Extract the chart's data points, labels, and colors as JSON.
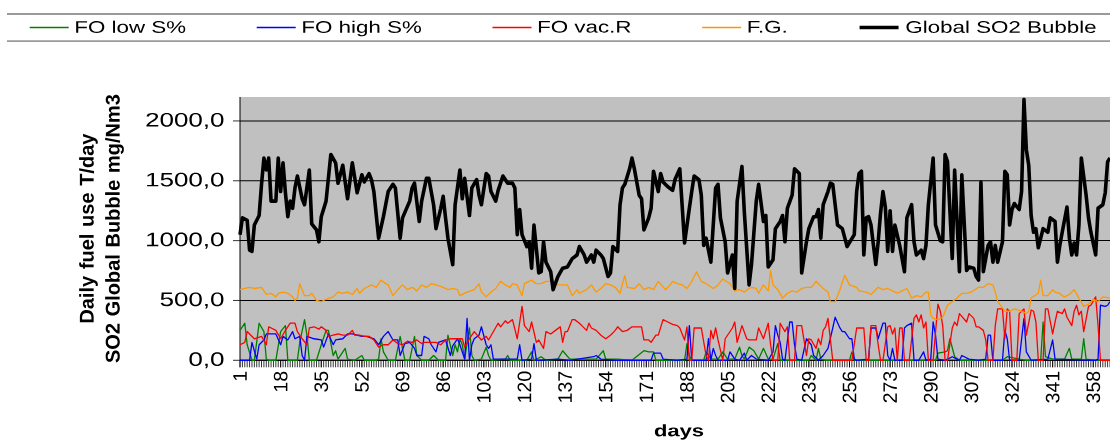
{
  "chart_data": {
    "type": "line",
    "xlabel": "days",
    "ylabel": "Daily fuel use T/day SO2 Global Bubble mg/Nm3",
    "xlim": [
      1,
      365
    ],
    "xticks": [
      1,
      18,
      35,
      52,
      69,
      86,
      103,
      120,
      137,
      154,
      171,
      188,
      205,
      222,
      239,
      256,
      273,
      290,
      307,
      324,
      341,
      358
    ],
    "ylim": [
      0,
      2200
    ],
    "yticks": [
      {
        "value": 0,
        "label": "0,0"
      },
      {
        "value": 500,
        "label": "500,0"
      },
      {
        "value": 1000,
        "label": "1000,0"
      },
      {
        "value": 1500,
        "label": "1500,0"
      },
      {
        "value": 2000,
        "label": "2000,0"
      }
    ],
    "grid": "y",
    "legend": "top",
    "line_style": "solid",
    "series": [
      {
        "name": "FO low S%",
        "color": "#008000",
        "x": [
          1,
          3,
          4,
          6,
          7,
          9,
          11,
          12,
          13,
          16,
          18,
          20,
          21,
          25,
          26,
          28,
          29,
          30,
          33,
          35,
          37,
          38,
          40,
          41,
          42,
          45,
          46,
          49,
          52,
          53,
          58,
          59,
          60,
          61,
          63,
          66,
          68,
          70,
          72,
          74,
          75,
          77,
          80,
          82,
          84,
          87,
          88,
          90,
          91,
          92,
          93,
          94,
          95,
          97,
          98,
          99,
          102,
          104,
          105,
          106,
          112,
          113,
          114,
          121,
          123,
          124,
          127,
          129,
          134,
          136,
          139,
          150,
          153,
          154,
          159,
          165,
          170,
          172,
          174,
          175,
          187,
          188,
          189,
          190,
          195,
          196,
          198,
          201,
          203,
          205,
          208,
          210,
          211,
          212,
          214,
          216,
          218,
          220,
          222,
          224,
          226,
          227,
          239,
          240,
          242,
          243,
          244,
          246,
          256,
          257,
          258,
          292,
          293,
          296,
          297,
          298,
          300,
          302,
          320,
          322,
          327,
          330,
          336,
          337,
          338,
          341,
          346,
          348,
          349,
          353,
          354,
          355,
          359,
          365
        ],
        "values": [
          250,
          310,
          130,
          0,
          0,
          310,
          240,
          10,
          0,
          0,
          240,
          290,
          0,
          0,
          150,
          340,
          210,
          0,
          0,
          130,
          250,
          250,
          40,
          80,
          10,
          100,
          10,
          0,
          40,
          0,
          0,
          10,
          180,
          70,
          0,
          0,
          200,
          0,
          0,
          200,
          40,
          0,
          0,
          40,
          0,
          0,
          210,
          40,
          130,
          70,
          180,
          130,
          10,
          270,
          40,
          0,
          10,
          110,
          40,
          0,
          10,
          40,
          0,
          0,
          70,
          0,
          30,
          0,
          10,
          80,
          10,
          10,
          80,
          10,
          10,
          0,
          80,
          70,
          70,
          0,
          0,
          140,
          40,
          0,
          0,
          70,
          10,
          10,
          70,
          10,
          10,
          110,
          40,
          10,
          110,
          80,
          10,
          100,
          10,
          10,
          140,
          0,
          0,
          40,
          0,
          100,
          10,
          0,
          0,
          70,
          0,
          0,
          60,
          70,
          80,
          180,
          30,
          0,
          0,
          30,
          10,
          0,
          0,
          320,
          30,
          10,
          10,
          100,
          10,
          10,
          180,
          10,
          0,
          0
        ]
      },
      {
        "name": "FO high S%",
        "color": "#0000ff",
        "x": [
          1,
          5,
          6,
          8,
          9,
          11,
          12,
          16,
          18,
          19,
          21,
          23,
          24,
          26,
          27,
          28,
          29,
          32,
          35,
          36,
          38,
          40,
          41,
          44,
          46,
          48,
          50,
          52,
          54,
          57,
          59,
          61,
          63,
          65,
          67,
          68,
          70,
          72,
          74,
          75,
          77,
          78,
          80,
          81,
          83,
          84,
          87,
          89,
          90,
          91,
          92,
          93,
          95,
          96,
          97,
          98,
          99,
          101,
          102,
          104,
          105,
          106,
          107,
          117,
          118,
          119,
          123,
          124,
          125,
          134,
          139,
          149,
          150,
          152,
          159,
          173,
          174,
          177,
          178,
          184,
          188,
          189,
          190,
          196,
          197,
          198,
          199,
          200,
          201,
          205,
          206,
          208,
          210,
          212,
          213,
          215,
          217,
          222,
          224,
          225,
          226,
          227,
          228,
          229,
          231,
          232,
          233,
          234,
          236,
          238,
          240,
          241,
          243,
          245,
          247,
          249,
          250,
          252,
          253,
          254,
          256,
          257,
          258,
          259,
          264,
          265,
          267,
          268,
          270,
          271,
          272,
          273,
          274,
          275,
          278,
          279,
          280,
          282,
          283,
          285,
          287,
          288,
          290,
          291,
          292,
          293,
          296,
          299,
          302,
          303,
          306,
          310,
          313,
          314,
          315,
          316,
          320,
          321,
          322,
          323,
          327,
          329,
          330,
          332,
          339,
          341,
          342,
          359,
          360,
          361,
          363,
          364,
          365
        ],
        "values": [
          0,
          0,
          150,
          10,
          130,
          170,
          220,
          220,
          130,
          200,
          170,
          240,
          180,
          200,
          40,
          0,
          200,
          180,
          170,
          110,
          220,
          130,
          170,
          180,
          220,
          220,
          210,
          200,
          200,
          180,
          130,
          200,
          240,
          170,
          170,
          40,
          140,
          150,
          100,
          40,
          40,
          200,
          180,
          130,
          70,
          150,
          170,
          40,
          120,
          150,
          180,
          130,
          10,
          350,
          0,
          130,
          180,
          210,
          280,
          130,
          100,
          130,
          10,
          10,
          130,
          0,
          10,
          140,
          0,
          10,
          0,
          30,
          40,
          10,
          0,
          0,
          60,
          60,
          10,
          0,
          10,
          290,
          0,
          0,
          180,
          0,
          100,
          40,
          0,
          0,
          70,
          10,
          0,
          60,
          0,
          40,
          10,
          0,
          70,
          290,
          210,
          150,
          10,
          0,
          320,
          320,
          130,
          10,
          0,
          180,
          130,
          40,
          0,
          40,
          100,
          270,
          360,
          270,
          240,
          240,
          180,
          180,
          10,
          0,
          10,
          270,
          270,
          180,
          310,
          310,
          40,
          0,
          100,
          0,
          0,
          270,
          290,
          310,
          0,
          0,
          70,
          0,
          10,
          320,
          210,
          10,
          0,
          30,
          0,
          40,
          10,
          0,
          10,
          210,
          210,
          0,
          0,
          250,
          180,
          0,
          0,
          350,
          70,
          0,
          10,
          170,
          10,
          0,
          10,
          460,
          450,
          460,
          490
        ]
      },
      {
        "name": "FO vac.R",
        "color": "#ff0000",
        "x": [
          1,
          3,
          4,
          5,
          7,
          10,
          12,
          13,
          16,
          18,
          20,
          22,
          24,
          25,
          27,
          29,
          30,
          32,
          34,
          35,
          37,
          38,
          40,
          42,
          44,
          46,
          48,
          49,
          51,
          53,
          55,
          57,
          59,
          61,
          63,
          65,
          67,
          69,
          71,
          73,
          75,
          77,
          78,
          81,
          83,
          85,
          87,
          89,
          92,
          94,
          95,
          97,
          99,
          102,
          104,
          105,
          107,
          109,
          110,
          112,
          113,
          115,
          117,
          119,
          120,
          122,
          123,
          125,
          126,
          128,
          129,
          131,
          133,
          135,
          136,
          137,
          138,
          140,
          141,
          143,
          144,
          146,
          147,
          148,
          150,
          152,
          154,
          156,
          158,
          159,
          161,
          163,
          165,
          167,
          169,
          170,
          172,
          173,
          175,
          176,
          178,
          180,
          182,
          184,
          185,
          187,
          188,
          189,
          190,
          191,
          194,
          196,
          197,
          198,
          199,
          200,
          201,
          203,
          204,
          207,
          208,
          209,
          211,
          213,
          214,
          217,
          218,
          220,
          222,
          223,
          224,
          226,
          227,
          229,
          230,
          231,
          233,
          234,
          236,
          238,
          239,
          240,
          242,
          243,
          244,
          245,
          246,
          247,
          249,
          257,
          259,
          262,
          263,
          264,
          265,
          267,
          268,
          269,
          270,
          272,
          273,
          274,
          275,
          276,
          277,
          278,
          279,
          281,
          283,
          284,
          285,
          286,
          287,
          288,
          289,
          291,
          293,
          294,
          295,
          296,
          297,
          299,
          300,
          301,
          302,
          305,
          306,
          308,
          309,
          310,
          312,
          313,
          314,
          316,
          317,
          318,
          320,
          321,
          322,
          323,
          324,
          326,
          327,
          329,
          330,
          332,
          333,
          334,
          335,
          337,
          338,
          339,
          341,
          342,
          343,
          345,
          346,
          347,
          349,
          350,
          351,
          352,
          353,
          354,
          356,
          357,
          359,
          360,
          361,
          365
        ],
        "values": [
          130,
          150,
          240,
          220,
          180,
          200,
          130,
          280,
          250,
          180,
          250,
          310,
          310,
          240,
          180,
          130,
          270,
          280,
          260,
          280,
          250,
          200,
          210,
          220,
          210,
          210,
          250,
          210,
          210,
          200,
          200,
          170,
          110,
          130,
          130,
          170,
          140,
          130,
          160,
          150,
          170,
          140,
          150,
          150,
          150,
          130,
          170,
          180,
          180,
          180,
          110,
          180,
          240,
          170,
          200,
          170,
          240,
          310,
          280,
          330,
          310,
          340,
          180,
          450,
          290,
          240,
          320,
          150,
          170,
          100,
          240,
          220,
          250,
          280,
          150,
          240,
          240,
          340,
          340,
          310,
          290,
          250,
          310,
          270,
          250,
          210,
          180,
          210,
          250,
          280,
          240,
          250,
          280,
          280,
          280,
          170,
          170,
          150,
          210,
          210,
          340,
          320,
          300,
          290,
          270,
          170,
          280,
          0,
          0,
          270,
          270,
          40,
          0,
          250,
          180,
          270,
          170,
          0,
          180,
          270,
          320,
          150,
          290,
          180,
          170,
          170,
          270,
          180,
          310,
          130,
          0,
          0,
          310,
          240,
          280,
          0,
          0,
          290,
          290,
          40,
          180,
          170,
          100,
          180,
          130,
          250,
          280,
          350,
          0,
          0,
          270,
          270,
          0,
          0,
          290,
          290,
          130,
          0,
          0,
          280,
          290,
          220,
          270,
          0,
          270,
          270,
          0,
          0,
          350,
          380,
          320,
          380,
          270,
          320,
          0,
          0,
          470,
          410,
          290,
          0,
          0,
          270,
          320,
          290,
          390,
          320,
          390,
          350,
          280,
          280,
          250,
          170,
          0,
          0,
          290,
          430,
          430,
          180,
          430,
          410,
          0,
          0,
          390,
          430,
          210,
          420,
          410,
          320,
          0,
          0,
          430,
          430,
          220,
          320,
          410,
          390,
          430,
          360,
          290,
          410,
          460,
          380,
          410,
          240,
          450,
          460,
          530,
          290,
          0,
          0
        ]
      },
      {
        "name": "F.G.",
        "color": "#ff9900",
        "x": [
          1,
          3,
          5,
          7,
          10,
          12,
          14,
          16,
          17,
          19,
          21,
          23,
          24,
          25,
          26,
          28,
          30,
          31,
          33,
          35,
          37,
          40,
          42,
          44,
          46,
          48,
          50,
          51,
          53,
          56,
          58,
          60,
          62,
          63,
          65,
          67,
          69,
          71,
          73,
          75,
          77,
          79,
          81,
          83,
          86,
          88,
          90,
          92,
          93,
          96,
          99,
          101,
          102,
          104,
          106,
          108,
          110,
          112,
          114,
          115,
          117,
          119,
          120,
          123,
          125,
          127,
          129,
          132,
          134,
          136,
          138,
          140,
          142,
          143,
          146,
          148,
          150,
          152,
          154,
          156,
          158,
          160,
          162,
          163,
          166,
          168,
          170,
          172,
          174,
          176,
          179,
          181,
          182,
          184,
          186,
          188,
          190,
          192,
          194,
          196,
          199,
          201,
          203,
          206,
          208,
          210,
          212,
          214,
          215,
          217,
          218,
          220,
          222,
          223,
          224,
          226,
          228,
          230,
          232,
          234,
          236,
          238,
          240,
          242,
          245,
          247,
          248,
          250,
          252,
          254,
          256,
          259,
          260,
          263,
          265,
          268,
          270,
          272,
          274,
          276,
          278,
          280,
          282,
          284,
          286,
          288,
          289,
          290,
          291,
          293,
          295,
          297,
          299,
          301,
          303,
          305,
          307,
          310,
          312,
          314,
          316,
          317,
          318,
          321,
          323,
          325,
          328,
          330,
          331,
          332,
          335,
          336,
          337,
          339,
          341,
          342,
          344,
          345,
          346,
          348,
          350,
          352,
          354,
          356,
          358,
          360,
          362,
          365
        ],
        "values": [
          590,
          600,
          610,
          600,
          610,
          550,
          560,
          530,
          560,
          570,
          560,
          530,
          500,
          520,
          640,
          540,
          540,
          560,
          500,
          490,
          510,
          530,
          570,
          560,
          570,
          550,
          600,
          560,
          600,
          630,
          610,
          670,
          640,
          630,
          540,
          590,
          630,
          590,
          610,
          580,
          630,
          610,
          640,
          630,
          610,
          590,
          600,
          590,
          540,
          570,
          590,
          640,
          570,
          530,
          570,
          600,
          660,
          630,
          610,
          640,
          630,
          540,
          640,
          670,
          640,
          640,
          660,
          660,
          630,
          630,
          630,
          540,
          590,
          560,
          590,
          630,
          570,
          600,
          640,
          630,
          610,
          560,
          710,
          610,
          600,
          640,
          590,
          610,
          590,
          660,
          590,
          630,
          660,
          640,
          630,
          600,
          660,
          740,
          660,
          640,
          600,
          630,
          680,
          640,
          580,
          590,
          570,
          600,
          610,
          600,
          560,
          630,
          580,
          750,
          630,
          590,
          520,
          560,
          580,
          570,
          600,
          610,
          610,
          660,
          600,
          570,
          490,
          490,
          590,
          710,
          630,
          610,
          580,
          570,
          550,
          610,
          590,
          600,
          580,
          560,
          580,
          600,
          520,
          540,
          530,
          570,
          570,
          380,
          350,
          340,
          360,
          460,
          490,
          520,
          560,
          560,
          570,
          610,
          610,
          640,
          630,
          570,
          490,
          410,
          410,
          430,
          410,
          390,
          410,
          520,
          560,
          670,
          540,
          540,
          590,
          570,
          560,
          540,
          530,
          550,
          590,
          520,
          450,
          470,
          510,
          490,
          530,
          520
        ]
      },
      {
        "name": "Global SO2 Bubble",
        "color": "#000000",
        "x": [
          1,
          2,
          4,
          5,
          6,
          7,
          9,
          10,
          11,
          12,
          13,
          14,
          16,
          17,
          18,
          19,
          20,
          21,
          22,
          23,
          24,
          25,
          27,
          28,
          30,
          31,
          33,
          34,
          35,
          37,
          39,
          41,
          42,
          44,
          46,
          48,
          50,
          52,
          53,
          55,
          56,
          57,
          59,
          61,
          63,
          65,
          66,
          68,
          69,
          72,
          73,
          74,
          76,
          77,
          79,
          80,
          82,
          83,
          85,
          86,
          87,
          88,
          90,
          91,
          93,
          94,
          95,
          97,
          98,
          100,
          101,
          102,
          104,
          105,
          106,
          108,
          109,
          111,
          113,
          115,
          116,
          117,
          118,
          119,
          121,
          122,
          123,
          124,
          126,
          127,
          128,
          129,
          131,
          132,
          134,
          136,
          138,
          140,
          142,
          143,
          145,
          146,
          148,
          149,
          150,
          152,
          153,
          155,
          156,
          157,
          159,
          160,
          161,
          162,
          164,
          165,
          166,
          168,
          169,
          170,
          172,
          173,
          174,
          176,
          177,
          178,
          180,
          182,
          183,
          185,
          187,
          189,
          190,
          191,
          193,
          194,
          195,
          196,
          198,
          200,
          201,
          202,
          204,
          205,
          207,
          208,
          209,
          211,
          212,
          214,
          215,
          217,
          218,
          220,
          221,
          222,
          224,
          225,
          227,
          228,
          229,
          230,
          232,
          233,
          235,
          236,
          238,
          239,
          241,
          242,
          243,
          244,
          245,
          247,
          248,
          249,
          251,
          253,
          255,
          258,
          259,
          260,
          261,
          262,
          263,
          264,
          265,
          267,
          268,
          269,
          270,
          271,
          272,
          273,
          274,
          275,
          277,
          279,
          280,
          282,
          283,
          284,
          286,
          287,
          288,
          289,
          291,
          292,
          294,
          295,
          296,
          297,
          299,
          300,
          302,
          303,
          305,
          306,
          308,
          309,
          310,
          311,
          312,
          313,
          314,
          315,
          316,
          317,
          318,
          320,
          321,
          322,
          323,
          324,
          325,
          327,
          328,
          329,
          330,
          331,
          332,
          333,
          334,
          335,
          337,
          339,
          340,
          342,
          343,
          344,
          345,
          347,
          348,
          349,
          350,
          351,
          352,
          353,
          355,
          356,
          357,
          359,
          360,
          362,
          363,
          364,
          365
        ],
        "values": [
          1050,
          1190,
          1170,
          920,
          910,
          1130,
          1210,
          1470,
          1690,
          1590,
          1690,
          1330,
          1330,
          1690,
          1410,
          1650,
          1400,
          1200,
          1330,
          1270,
          1440,
          1540,
          1350,
          1300,
          1590,
          1140,
          1090,
          990,
          1200,
          1330,
          1720,
          1650,
          1480,
          1630,
          1350,
          1650,
          1400,
          1550,
          1490,
          1560,
          1510,
          1410,
          1020,
          1200,
          1410,
          1470,
          1440,
          1020,
          1190,
          1330,
          1440,
          1480,
          1160,
          1330,
          1520,
          1520,
          1300,
          1100,
          1270,
          1370,
          1190,
          1020,
          800,
          1300,
          1590,
          1350,
          1520,
          1210,
          1440,
          1510,
          1380,
          1300,
          1560,
          1540,
          1410,
          1330,
          1420,
          1540,
          1480,
          1480,
          1440,
          1050,
          1260,
          1050,
          950,
          990,
          770,
          1130,
          730,
          740,
          990,
          820,
          740,
          590,
          700,
          770,
          780,
          850,
          880,
          950,
          880,
          820,
          880,
          820,
          920,
          880,
          850,
          700,
          730,
          950,
          910,
          1300,
          1440,
          1470,
          1600,
          1690,
          1600,
          1380,
          1350,
          1090,
          1190,
          1270,
          1580,
          1410,
          1560,
          1490,
          1450,
          1420,
          1510,
          1600,
          980,
          1270,
          1410,
          1540,
          1510,
          1380,
          960,
          1020,
          820,
          1440,
          1470,
          1190,
          990,
          730,
          880,
          600,
          1330,
          1620,
          1240,
          630,
          800,
          1330,
          1470,
          1160,
          1210,
          780,
          840,
          1100,
          1160,
          1210,
          990,
          1270,
          1380,
          1600,
          1560,
          730,
          990,
          1100,
          1200,
          1200,
          1260,
          1020,
          1300,
          1410,
          1480,
          1470,
          1130,
          1100,
          950,
          1050,
          1410,
          1560,
          1580,
          880,
          1190,
          1200,
          1130,
          800,
          990,
          1230,
          1410,
          1280,
          910,
          1250,
          910,
          1130,
          960,
          740,
          1190,
          1300,
          990,
          880,
          920,
          850,
          960,
          1300,
          1690,
          1130,
          1000,
          990,
          1720,
          1660,
          850,
          1590,
          740,
          1550,
          750,
          780,
          770,
          700,
          670,
          1490,
          740,
          850,
          960,
          990,
          820,
          960,
          820,
          990,
          1580,
          1550,
          1130,
          1260,
          1310,
          1260,
          1410,
          2180,
          1760,
          1630,
          1210,
          1070,
          1100,
          940,
          1100,
          1070,
          1190,
          1160,
          820,
          960,
          1070,
          1280,
          1020,
          880,
          980,
          880,
          1130,
          1690,
          1380,
          1190,
          1070,
          880,
          1270,
          1300,
          1400,
          1660,
          1690
        ]
      }
    ]
  }
}
